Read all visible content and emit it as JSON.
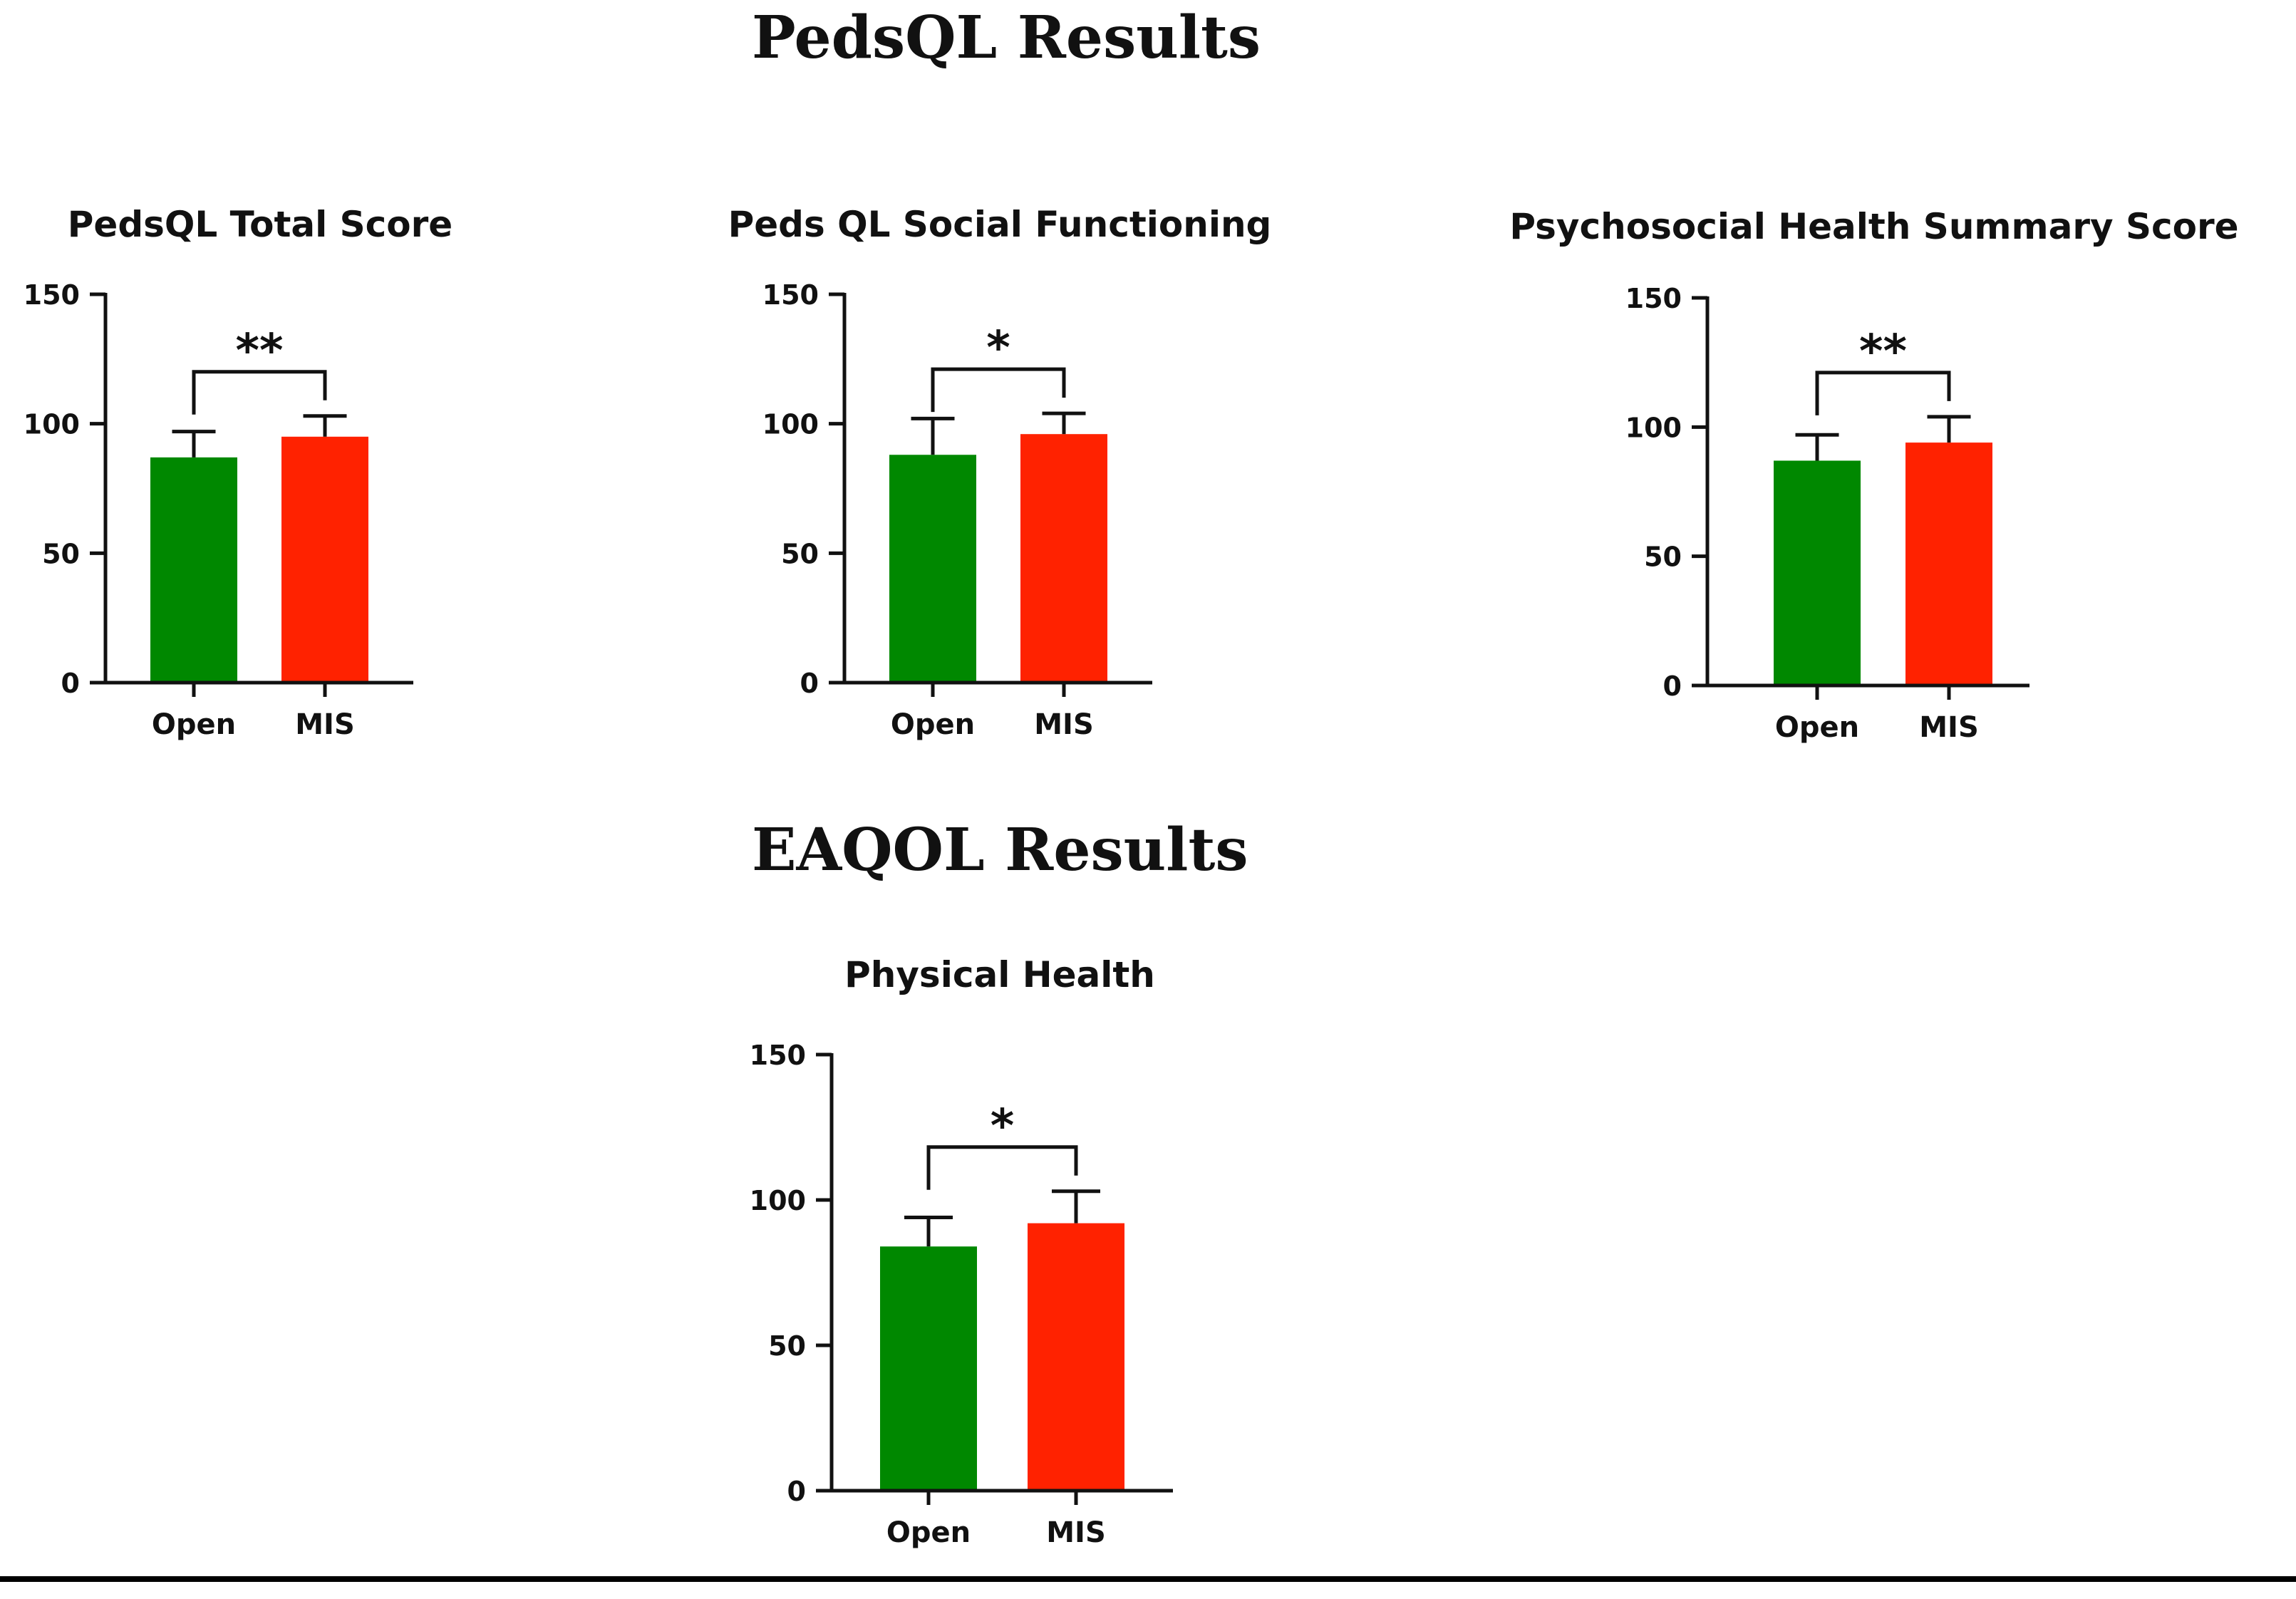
{
  "sections": [
    {
      "title": "PedsQL Results"
    },
    {
      "title": "EAQOL Results"
    }
  ],
  "colors": {
    "Open": "#008800",
    "MIS": "#ff2200",
    "axis": "#111111"
  },
  "chart_data": [
    {
      "type": "bar",
      "title": "PedsQL Total Score",
      "categories": [
        "Open",
        "MIS"
      ],
      "values": [
        87,
        95
      ],
      "error": [
        10,
        8
      ],
      "ylim": [
        0,
        150
      ],
      "yticks": [
        0,
        50,
        100,
        150
      ],
      "significance": "**",
      "grid": false
    },
    {
      "type": "bar",
      "title": "Peds QL Social Functioning",
      "categories": [
        "Open",
        "MIS"
      ],
      "values": [
        88,
        96
      ],
      "error": [
        14,
        8
      ],
      "ylim": [
        0,
        150
      ],
      "yticks": [
        0,
        50,
        100,
        150
      ],
      "significance": "*",
      "grid": false
    },
    {
      "type": "bar",
      "title": "Psychosocial Health Summary Score",
      "categories": [
        "Open",
        "MIS"
      ],
      "values": [
        87,
        94
      ],
      "error": [
        10,
        10
      ],
      "ylim": [
        0,
        150
      ],
      "yticks": [
        0,
        50,
        100,
        150
      ],
      "significance": "**",
      "grid": false
    },
    {
      "type": "bar",
      "title": "Physical Health",
      "categories": [
        "Open",
        "MIS"
      ],
      "values": [
        84,
        92
      ],
      "error": [
        10,
        11
      ],
      "ylim": [
        0,
        150
      ],
      "yticks": [
        0,
        50,
        100,
        150
      ],
      "significance": "*",
      "grid": false
    }
  ]
}
